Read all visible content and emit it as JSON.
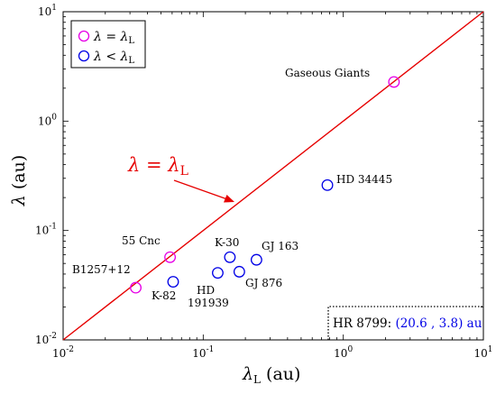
{
  "chart_data": {
    "type": "scatter",
    "x_scale": "log",
    "y_scale": "log",
    "xlim": [
      0.01,
      10
    ],
    "ylim": [
      0.01,
      10
    ],
    "xlabel": "λL (au)",
    "ylabel": "λ (au)",
    "x_ticks": [
      {
        "value": 0.01,
        "base": "10",
        "exp": "-2"
      },
      {
        "value": 0.1,
        "base": "10",
        "exp": "-1"
      },
      {
        "value": 1,
        "base": "10",
        "exp": "0"
      },
      {
        "value": 10,
        "base": "10",
        "exp": "1"
      }
    ],
    "y_ticks": [
      {
        "value": 0.01,
        "base": "10",
        "exp": "-2"
      },
      {
        "value": 0.1,
        "base": "10",
        "exp": "-1"
      },
      {
        "value": 1,
        "base": "10",
        "exp": "0"
      },
      {
        "value": 10,
        "base": "10",
        "exp": "1"
      }
    ],
    "grid": false,
    "legend_position": "top-left",
    "colors": {
      "equal": "#e600e6",
      "less": "#0000e6",
      "line": "#e60000",
      "inset_value": "#0000e6"
    },
    "series": [
      {
        "name": "λ = λL",
        "color": "#e600e6",
        "points": [
          {
            "x": 0.033,
            "y": 0.03,
            "label": "B1257+12"
          },
          {
            "x": 0.058,
            "y": 0.057,
            "label": "55 Cnc"
          },
          {
            "x": 2.3,
            "y": 2.28,
            "label": "Gaseous Giants"
          }
        ]
      },
      {
        "name": "λ < λL",
        "color": "#0000e6",
        "points": [
          {
            "x": 0.061,
            "y": 0.034,
            "label": "K-82"
          },
          {
            "x": 0.127,
            "y": 0.041,
            "label": "HD 191939"
          },
          {
            "x": 0.155,
            "y": 0.057,
            "label": "K-30"
          },
          {
            "x": 0.181,
            "y": 0.042,
            "label": "GJ 876"
          },
          {
            "x": 0.24,
            "y": 0.054,
            "label": "GJ 163"
          },
          {
            "x": 0.77,
            "y": 0.26,
            "label": "HD 34445"
          }
        ]
      }
    ],
    "reference_line": {
      "label": "λ = λL",
      "from": [
        0.01,
        0.01
      ],
      "to": [
        10,
        10
      ]
    },
    "legend": {
      "equal_lambda": "λ",
      "equal_eq": " = ",
      "equal_lam2": "λ",
      "equal_sub": "L",
      "less_lambda": "λ",
      "less_lt": " < ",
      "less_lam2": "λ",
      "less_sub": "L"
    },
    "line_annotation": {
      "lam": "λ",
      "eq": " = ",
      "lam2": "λ",
      "sub": "L"
    },
    "labels": {
      "gaseous": "Gaseous Giants",
      "hd34445": "HD 34445",
      "cnc55": "55 Cnc",
      "k30": "K-30",
      "gj163": "GJ 163",
      "b1257": "B1257+12",
      "k82": "K-82",
      "hd191939_a": "HD",
      "hd191939_b": "191939",
      "gj876": "GJ 876"
    },
    "inset": {
      "name": "HR 8799:",
      "value": "(20.6 , 3.8) au"
    },
    "axis_labels": {
      "x_sym": "λ",
      "x_sub": "L",
      "x_unit": " (au)",
      "y_sym": "λ",
      "y_unit": " (au)"
    }
  }
}
